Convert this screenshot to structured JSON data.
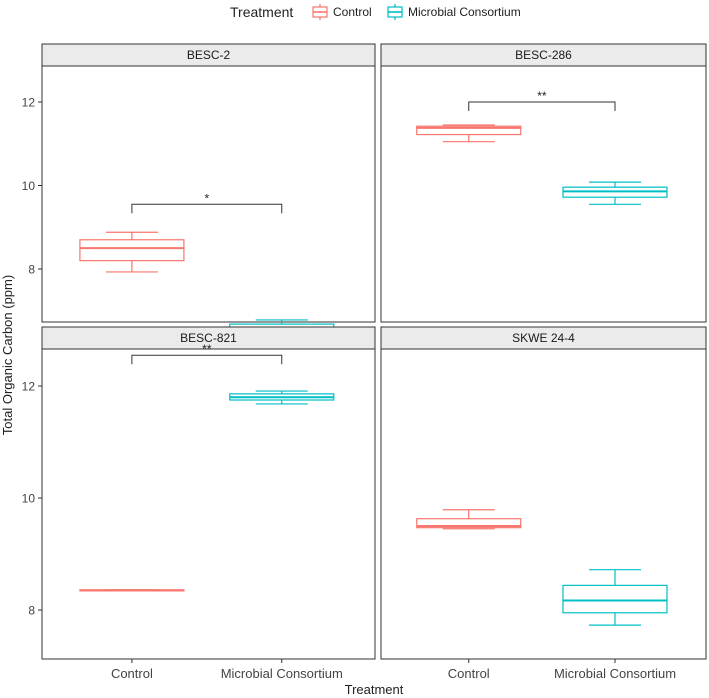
{
  "legend": {
    "title": "Treatment",
    "items": [
      {
        "label": "Control",
        "color": "#F8766D"
      },
      {
        "label": "Microbial Consortium",
        "color": "#00BFC4"
      }
    ]
  },
  "chart_data": {
    "type": "box",
    "facet_layout": "2x2 grid",
    "xlabel": "Treatment",
    "ylabel": "Total Organic Carbon (ppm)",
    "categories": [
      "Control",
      "Microbial Consortium"
    ],
    "ylim": [
      6.2,
      12.9
    ],
    "yticks": [
      8,
      10,
      12
    ],
    "legend_position": "top",
    "grid": false,
    "facets": [
      {
        "title": "BESC-2",
        "boxes": [
          {
            "category": "Control",
            "min": 7.93,
            "q1": 8.2,
            "median": 8.5,
            "q3": 8.7,
            "max": 8.88
          },
          {
            "category": "Microbial Consortium",
            "min": 6.38,
            "q1": 6.48,
            "median": 6.58,
            "q3": 6.68,
            "max": 6.78
          }
        ],
        "significance": {
          "label": "*",
          "y": 9.55
        }
      },
      {
        "title": "BESC-286",
        "boxes": [
          {
            "category": "Control",
            "min": 11.05,
            "q1": 11.22,
            "median": 11.38,
            "q3": 11.42,
            "max": 11.45
          },
          {
            "category": "Microbial Consortium",
            "min": 9.55,
            "q1": 9.72,
            "median": 9.86,
            "q3": 9.96,
            "max": 10.08
          }
        ],
        "significance": {
          "label": "**",
          "y": 12.0
        }
      },
      {
        "title": "BESC-821",
        "boxes": [
          {
            "category": "Control",
            "min": 8.35,
            "q1": 8.35,
            "median": 8.35,
            "q3": 8.36,
            "max": 8.36
          },
          {
            "category": "Microbial Consortium",
            "min": 11.68,
            "q1": 11.75,
            "median": 11.8,
            "q3": 11.86,
            "max": 11.91
          }
        ],
        "significance": {
          "label": "**",
          "y": 12.55
        }
      },
      {
        "title": "SKWE 24-4",
        "boxes": [
          {
            "category": "Control",
            "min": 9.45,
            "q1": 9.47,
            "median": 9.5,
            "q3": 9.63,
            "max": 9.79
          },
          {
            "category": "Microbial Consortium",
            "min": 7.73,
            "q1": 7.95,
            "median": 8.17,
            "q3": 8.44,
            "max": 8.72
          }
        ],
        "significance": null
      }
    ]
  }
}
